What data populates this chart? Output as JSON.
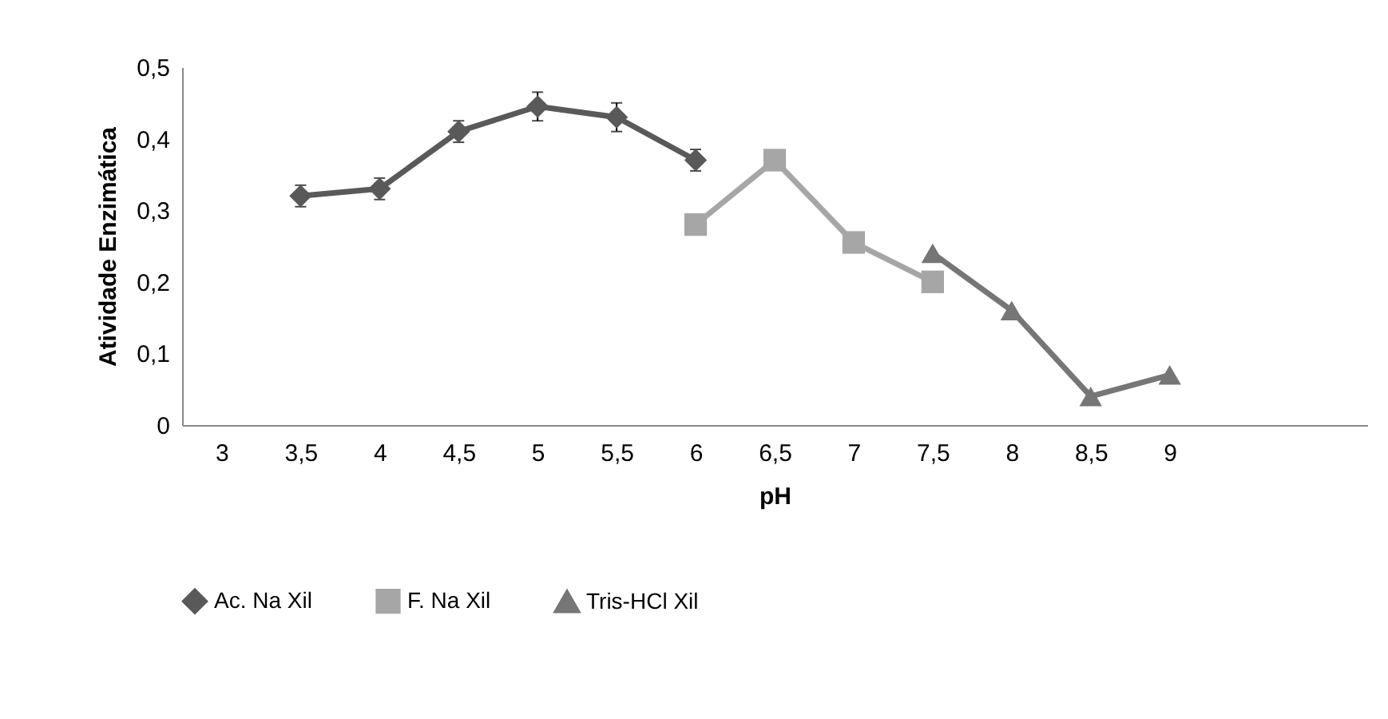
{
  "chart_data": {
    "type": "line",
    "xlabel": "pH",
    "ylabel": "Atividade Enzimática",
    "xlim": [
      2.75,
      10.25
    ],
    "xticks": [
      3,
      {
        "value": 3.5,
        "label": "3,5"
      },
      4,
      {
        "value": 4.5,
        "label": "4,5"
      },
      5,
      {
        "value": 5.5,
        "label": "5,5"
      },
      6,
      {
        "value": 6.5,
        "label": "6,5"
      },
      7,
      {
        "value": 7.5,
        "label": "7,5"
      },
      8,
      {
        "value": 8.5,
        "label": "8,5"
      },
      9
    ],
    "ylim": [
      0,
      0.5
    ],
    "yticks": [
      0,
      {
        "value": 0.1,
        "label": "0,1"
      },
      {
        "value": 0.2,
        "label": "0,2"
      },
      {
        "value": 0.3,
        "label": "0,3"
      },
      {
        "value": 0.4,
        "label": "0,4"
      },
      {
        "value": 0.5,
        "label": "0,5"
      }
    ],
    "grid": false,
    "legend": "bottom",
    "line_style": "solid",
    "series": [
      {
        "name": "Ac. Na  Xil",
        "color": "#595959",
        "marker": "diamond",
        "x": [
          3.5,
          4,
          4.5,
          5,
          5.5,
          6
        ],
        "values": [
          0.32,
          0.33,
          0.41,
          0.445,
          0.43,
          0.37
        ],
        "errors": [
          0.015,
          0.015,
          0.015,
          0.02,
          0.02,
          0.015
        ]
      },
      {
        "name": "F. Na  Xil",
        "color": "#a6a6a6",
        "marker": "square",
        "x": [
          6,
          6.5,
          7,
          7.5
        ],
        "values": [
          0.28,
          0.37,
          0.255,
          0.2
        ]
      },
      {
        "name": "Tris-HCl  Xil",
        "color": "#767676",
        "marker": "triangle",
        "x": [
          7.5,
          8,
          8.5,
          9
        ],
        "values": [
          0.24,
          0.16,
          0.04,
          0.07
        ]
      }
    ]
  }
}
